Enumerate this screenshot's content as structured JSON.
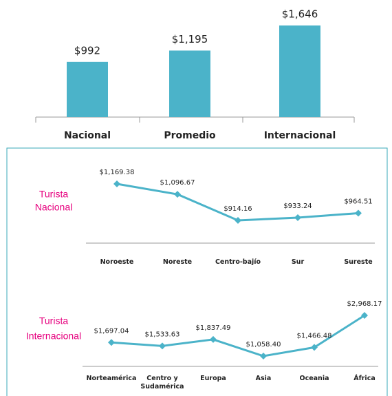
{
  "chart_data": [
    {
      "type": "bar",
      "categories": [
        "Nacional",
        "Promedio",
        "Internacional"
      ],
      "values": [
        992,
        1195,
        1646
      ],
      "value_labels": [
        "$992",
        "$1,195",
        "$1,646"
      ],
      "color": "#4bb3c9"
    },
    {
      "type": "line",
      "label_lines": [
        "Turista",
        "Nacional"
      ],
      "categories": [
        "Noroeste",
        "Noreste",
        "Centro-bajío",
        "Sur",
        "Sureste"
      ],
      "values": [
        1169.38,
        1096.67,
        914.16,
        933.24,
        964.51
      ],
      "value_labels": [
        "$1,169.38",
        "$1,096.67",
        "$914.16",
        "$933.24",
        "$964.51"
      ],
      "color": "#4bb3c9"
    },
    {
      "type": "line",
      "label_lines": [
        "Turista",
        "Internacional"
      ],
      "categories": [
        "Norteamérica",
        "Centro y Sudamérica",
        "Europa",
        "Asia",
        "Oceania",
        "África"
      ],
      "values": [
        1697.04,
        1533.63,
        1837.49,
        1058.4,
        1466.48,
        2968.17
      ],
      "value_labels": [
        "$1,697.04",
        "$1,533.63",
        "$1,837.49",
        "$1,058.40",
        "$1,466.48",
        "$2,968.17"
      ],
      "color": "#4bb3c9"
    }
  ]
}
